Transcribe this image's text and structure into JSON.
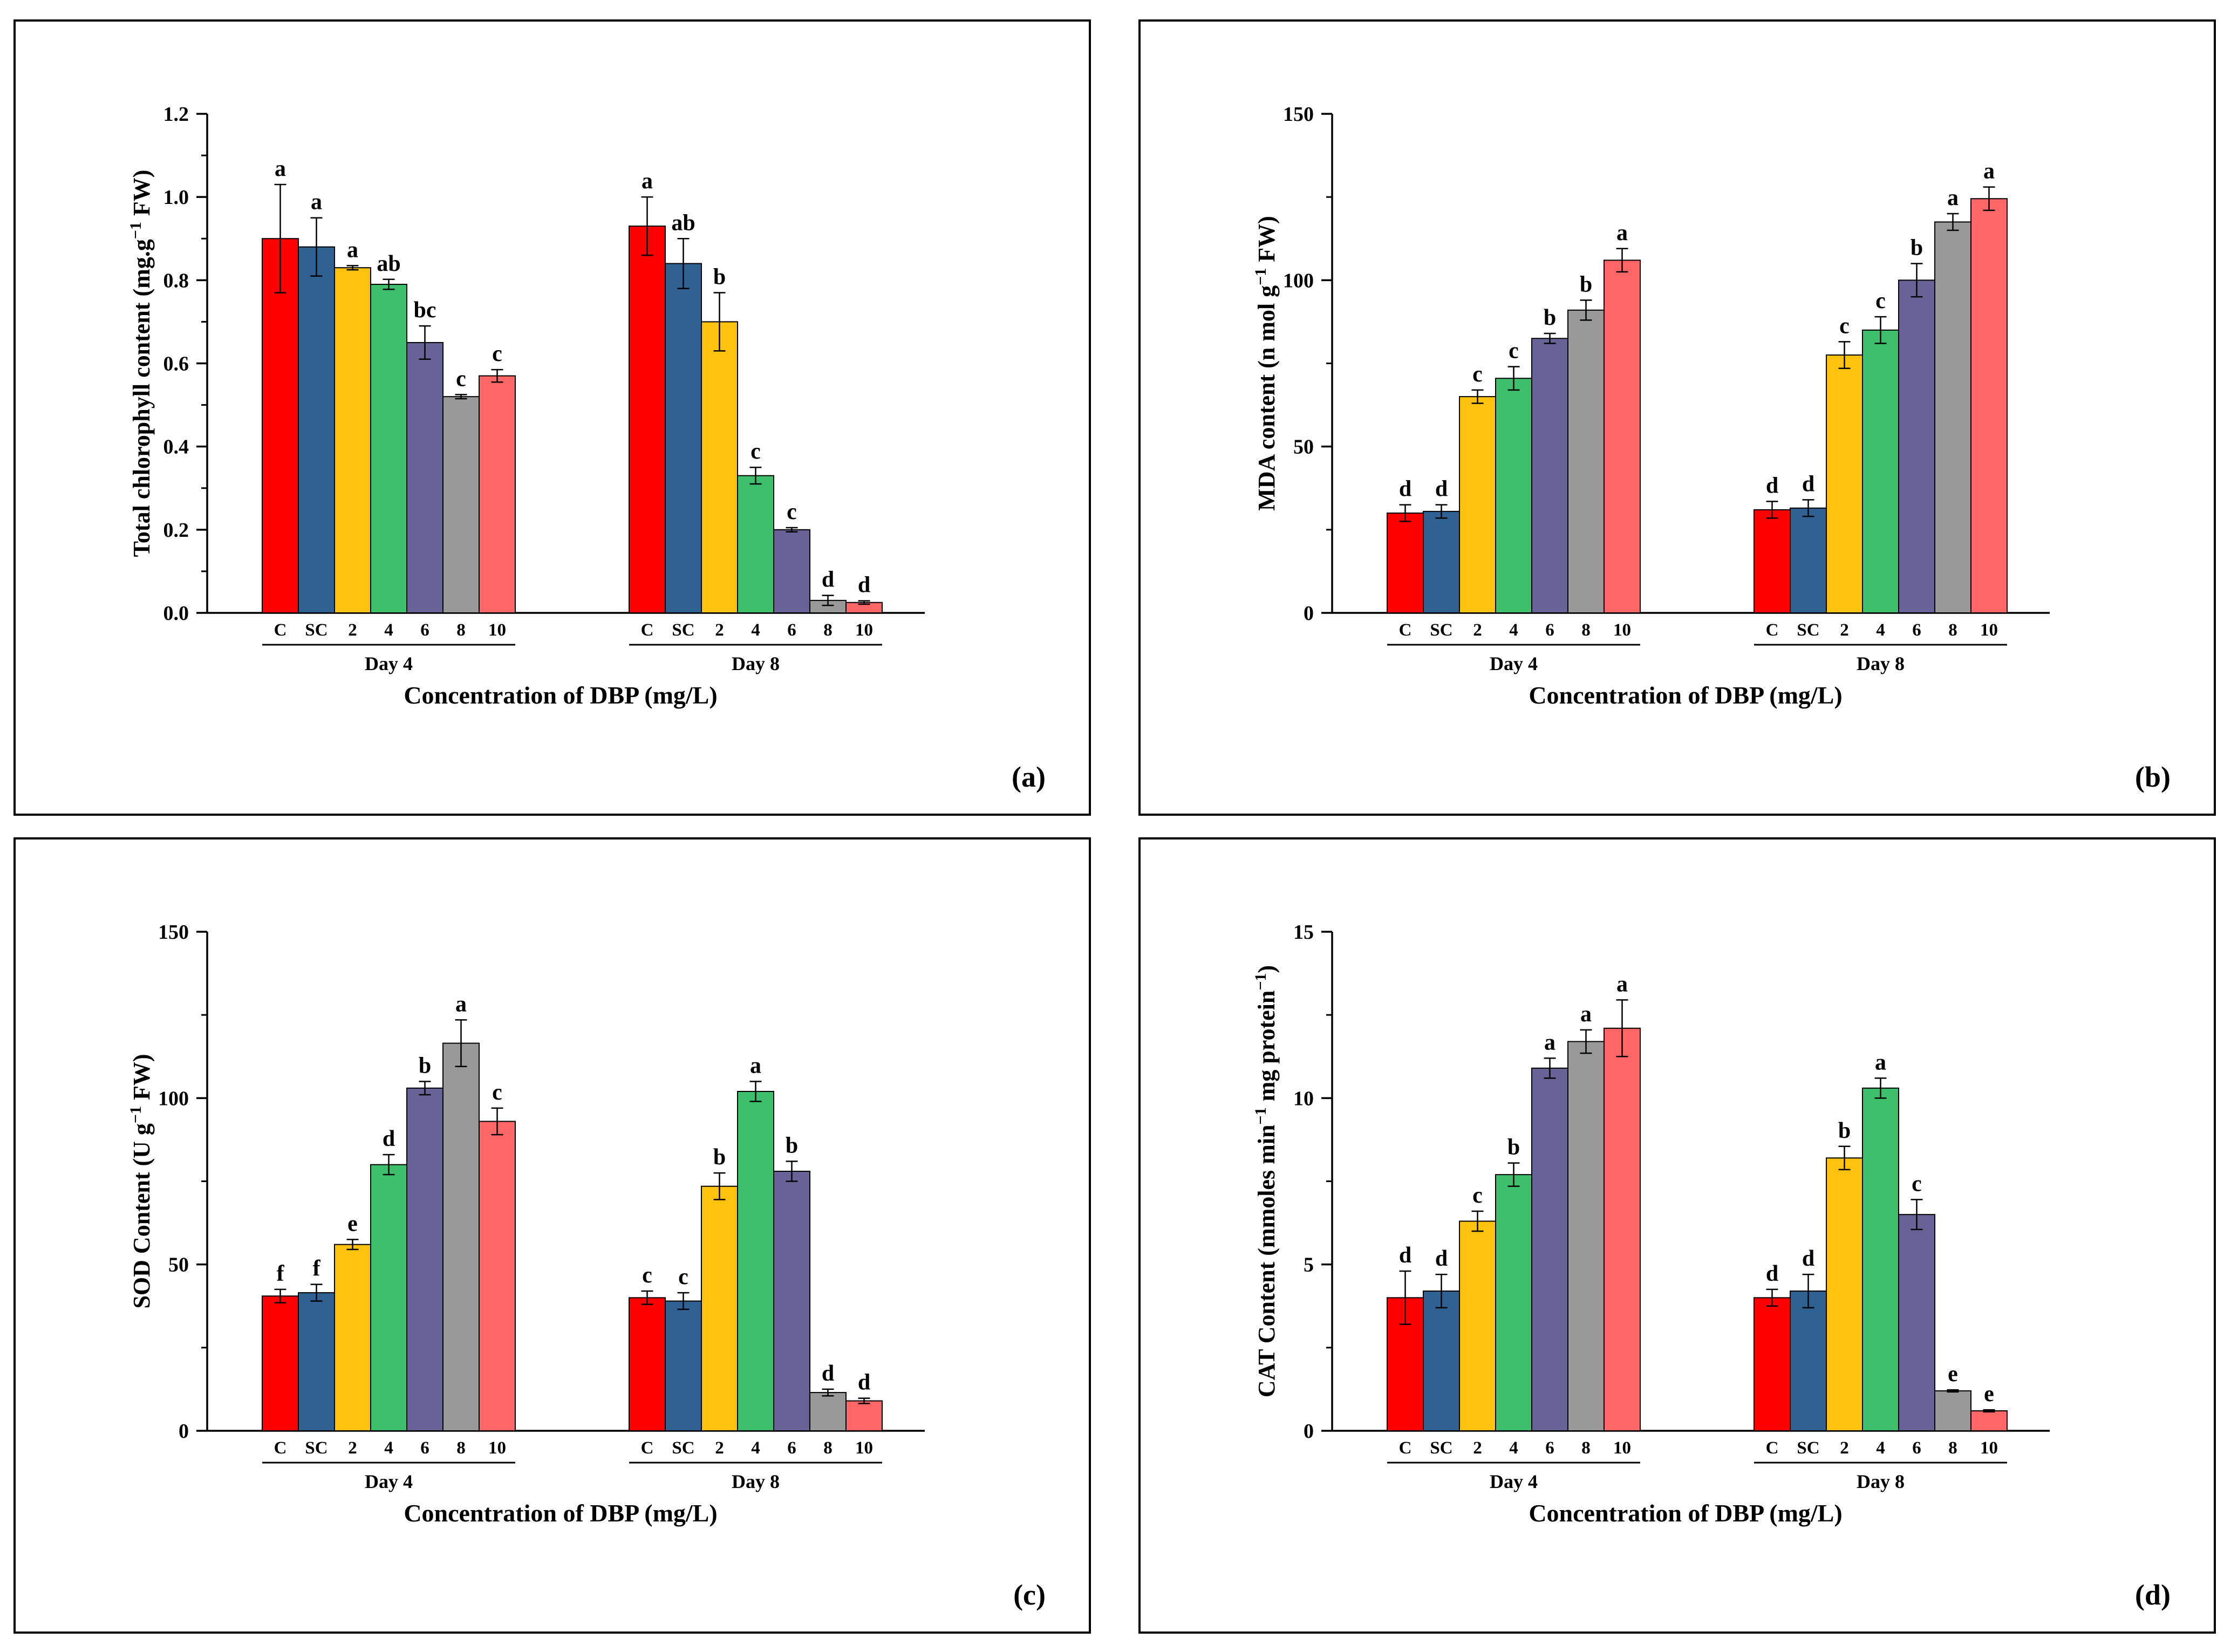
{
  "xlabel": "Concentration of DBP (mg/L)",
  "groups": [
    "Day 4",
    "Day 8"
  ],
  "categories": [
    "C",
    "SC",
    "2",
    "4",
    "6",
    "8",
    "10"
  ],
  "bar_colors": [
    "#ff0000",
    "#2f6193",
    "#ffc20e",
    "#3dbf6c",
    "#686396",
    "#999999",
    "#ff6666"
  ],
  "chart_data": [
    {
      "type": "bar",
      "panel_label": "(a)",
      "ylabel": "Total chlorophyll content (mg.g",
      "ylabel_sup": "−1",
      "ylabel_tail": " FW)",
      "ylim": [
        0,
        1.2
      ],
      "yticks": [
        "0.0",
        "0.2",
        "0.4",
        "0.6",
        "0.8",
        "1.0",
        "1.2"
      ],
      "series": [
        {
          "group": "Day 4",
          "values": [
            0.9,
            0.88,
            0.83,
            0.79,
            0.65,
            0.52,
            0.57
          ],
          "errors": [
            0.13,
            0.07,
            0.005,
            0.012,
            0.04,
            0.005,
            0.015
          ],
          "letters": [
            "a",
            "a",
            "a",
            "ab",
            "bc",
            "c",
            "c"
          ]
        },
        {
          "group": "Day 8",
          "values": [
            0.93,
            0.84,
            0.7,
            0.33,
            0.2,
            0.03,
            0.025
          ],
          "errors": [
            0.07,
            0.06,
            0.07,
            0.02,
            0.005,
            0.012,
            0.004
          ],
          "letters": [
            "a",
            "ab",
            "b",
            "c",
            "c",
            "d",
            "d"
          ]
        }
      ]
    },
    {
      "type": "bar",
      "panel_label": "(b)",
      "ylabel": "MDA content (n mol g",
      "ylabel_sup": "−1",
      "ylabel_tail": " FW)",
      "ylim": [
        0,
        150
      ],
      "yticks": [
        "0",
        "50",
        "100",
        "150"
      ],
      "series": [
        {
          "group": "Day 4",
          "values": [
            30,
            30.5,
            65,
            70.5,
            82.5,
            91,
            106
          ],
          "errors": [
            2.5,
            2,
            2,
            3.5,
            1.5,
            3,
            3.5
          ],
          "letters": [
            "d",
            "d",
            "c",
            "c",
            "b",
            "b",
            "a"
          ]
        },
        {
          "group": "Day 8",
          "values": [
            31,
            31.5,
            77.5,
            85,
            100,
            117.5,
            124.5
          ],
          "errors": [
            2.5,
            2.5,
            4,
            4,
            5,
            2.5,
            3.5
          ],
          "letters": [
            "d",
            "d",
            "c",
            "c",
            "b",
            "a",
            "a"
          ]
        }
      ]
    },
    {
      "type": "bar",
      "panel_label": "(c)",
      "ylabel": "SOD Content (U g",
      "ylabel_sup": "−1",
      "ylabel_tail": " FW)",
      "ylim": [
        0,
        150
      ],
      "yticks": [
        "0",
        "50",
        "100",
        "150"
      ],
      "series": [
        {
          "group": "Day 4",
          "values": [
            40.5,
            41.5,
            56,
            80,
            103,
            116.5,
            93
          ],
          "errors": [
            2,
            2.5,
            1.5,
            3,
            2,
            7,
            4
          ],
          "letters": [
            "f",
            "f",
            "e",
            "d",
            "b",
            "a",
            "c"
          ]
        },
        {
          "group": "Day 8",
          "values": [
            40,
            39,
            73.5,
            102,
            78,
            11.5,
            9
          ],
          "errors": [
            2,
            2.5,
            4,
            3,
            3,
            1,
            0.8
          ],
          "letters": [
            "c",
            "c",
            "b",
            "a",
            "b",
            "d",
            "d"
          ]
        }
      ]
    },
    {
      "type": "bar",
      "panel_label": "(d)",
      "ylabel": "CAT Content (mmoles min",
      "ylabel_sup": "−1",
      "ylabel_tail": " mg protein",
      "ylabel_sup2": "−1",
      "ylabel_end": ")",
      "ylim": [
        0,
        15
      ],
      "yticks": [
        "0",
        "5",
        "10",
        "15"
      ],
      "series": [
        {
          "group": "Day 4",
          "values": [
            4.0,
            4.2,
            6.3,
            7.7,
            10.9,
            11.7,
            12.1
          ],
          "errors": [
            0.8,
            0.5,
            0.3,
            0.35,
            0.3,
            0.35,
            0.85
          ],
          "letters": [
            "d",
            "d",
            "c",
            "b",
            "a",
            "a",
            "a"
          ]
        },
        {
          "group": "Day 8",
          "values": [
            4.0,
            4.2,
            8.2,
            10.3,
            6.5,
            1.2,
            0.6
          ],
          "errors": [
            0.25,
            0.5,
            0.35,
            0.3,
            0.45,
            0.03,
            0.03
          ],
          "letters": [
            "d",
            "d",
            "b",
            "a",
            "c",
            "e",
            "e"
          ]
        }
      ]
    }
  ]
}
